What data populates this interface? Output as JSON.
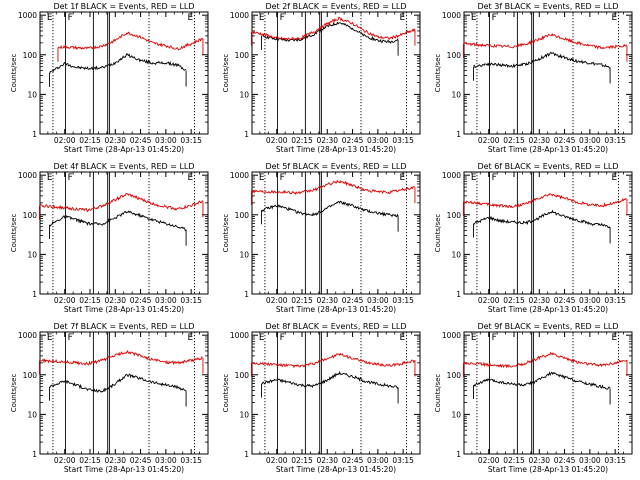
{
  "figure": {
    "background": "#ffffff",
    "colors": {
      "events": "#000000",
      "lld": "#e00000",
      "axes": "#000000"
    }
  },
  "chart_data": [
    {
      "type": "line",
      "title": "Det 1f BLACK = Events, RED = LLD",
      "xlabel": "Start Time (28-Apr-13 01:45:20)",
      "ylabel": "Counts/sec",
      "x_ticks": [
        "02:00",
        "02:15",
        "02:30",
        "02:45",
        "03:00",
        "03:15"
      ],
      "y_ticks": [
        "1",
        "10",
        "100",
        "1000"
      ],
      "ylim": [
        1,
        1000
      ],
      "ylog": true,
      "markers": [
        "E",
        "F",
        "E"
      ],
      "series": [
        {
          "name": "Events",
          "color": "#000000",
          "x": [
            "01:51",
            "02:00",
            "02:07",
            "02:14",
            "02:22",
            "02:29",
            "02:37",
            "02:45",
            "02:52",
            "03:00",
            "03:07",
            "03:12"
          ],
          "y": [
            35,
            60,
            48,
            45,
            47,
            60,
            100,
            72,
            62,
            62,
            55,
            40
          ]
        },
        {
          "name": "LLD",
          "color": "#e00000",
          "x": [
            "01:56",
            "02:00",
            "02:07",
            "02:14",
            "02:22",
            "02:29",
            "02:37",
            "02:45",
            "02:52",
            "03:00",
            "03:07",
            "03:15",
            "03:22"
          ],
          "y": [
            150,
            160,
            150,
            145,
            165,
            220,
            360,
            280,
            200,
            170,
            140,
            190,
            260
          ]
        }
      ]
    },
    {
      "type": "line",
      "title": "Det 2f BLACK = Events, RED = LLD",
      "xlabel": "Start Time (28-Apr-13 01:45:20)",
      "ylabel": "Counts/sec",
      "x_ticks": [
        "02:00",
        "02:15",
        "02:30",
        "02:45",
        "03:00",
        "03:15"
      ],
      "y_ticks": [
        "1",
        "10",
        "100",
        "1000"
      ],
      "ylim": [
        1,
        1000
      ],
      "ylog": true,
      "markers": [
        "E",
        "F",
        "E"
      ],
      "series": [
        {
          "name": "Events",
          "color": "#000000",
          "x": [
            "01:51",
            "02:00",
            "02:07",
            "02:14",
            "02:22",
            "02:29",
            "02:37",
            "02:45",
            "02:52",
            "03:00",
            "03:07",
            "03:12"
          ],
          "y": [
            300,
            250,
            230,
            240,
            330,
            500,
            650,
            470,
            300,
            230,
            210,
            240
          ]
        },
        {
          "name": "LLD",
          "color": "#e00000",
          "x": [
            "01:45",
            "01:53",
            "02:00",
            "02:07",
            "02:14",
            "02:22",
            "02:29",
            "02:37",
            "02:45",
            "02:52",
            "03:00",
            "03:07",
            "03:15",
            "03:22"
          ],
          "y": [
            380,
            320,
            260,
            250,
            260,
            380,
            580,
            830,
            620,
            400,
            280,
            260,
            330,
            430
          ]
        }
      ]
    },
    {
      "type": "line",
      "title": "Det 3f BLACK = Events, RED = LLD",
      "xlabel": "Start Time (28-Apr-13 01:45:20)",
      "ylabel": "Counts/sec",
      "x_ticks": [
        "02:00",
        "02:15",
        "02:30",
        "02:45",
        "03:00",
        "03:15"
      ],
      "y_ticks": [
        "1",
        "10",
        "100",
        "1000"
      ],
      "ylim": [
        1,
        1000
      ],
      "ylog": true,
      "markers": [
        "E",
        "F",
        "E"
      ],
      "series": [
        {
          "name": "Events",
          "color": "#000000",
          "x": [
            "01:51",
            "02:00",
            "02:07",
            "02:14",
            "02:22",
            "02:29",
            "02:37",
            "02:45",
            "02:52",
            "03:00",
            "03:07",
            "03:12"
          ],
          "y": [
            50,
            60,
            55,
            52,
            58,
            75,
            110,
            85,
            70,
            62,
            55,
            48
          ]
        },
        {
          "name": "LLD",
          "color": "#e00000",
          "x": [
            "01:45",
            "01:53",
            "02:00",
            "02:07",
            "02:14",
            "02:22",
            "02:29",
            "02:37",
            "02:45",
            "02:52",
            "03:00",
            "03:07",
            "03:15",
            "03:22"
          ],
          "y": [
            190,
            180,
            170,
            165,
            160,
            185,
            240,
            320,
            250,
            200,
            170,
            150,
            160,
            170
          ]
        }
      ]
    },
    {
      "type": "line",
      "title": "Det 4f BLACK = Events, RED = LLD",
      "xlabel": "Start Time (28-Apr-13 01:45:20)",
      "ylabel": "Counts/sec",
      "x_ticks": [
        "02:00",
        "02:15",
        "02:30",
        "02:45",
        "03:00",
        "03:15"
      ],
      "y_ticks": [
        "1",
        "10",
        "100",
        "1000"
      ],
      "ylim": [
        1,
        1000
      ],
      "ylog": true,
      "markers": [
        "E",
        "F",
        "E"
      ],
      "series": [
        {
          "name": "Events",
          "color": "#000000",
          "x": [
            "01:51",
            "02:00",
            "02:07",
            "02:14",
            "02:22",
            "02:29",
            "02:37",
            "02:45",
            "02:52",
            "03:00",
            "03:07",
            "03:12"
          ],
          "y": [
            55,
            90,
            75,
            60,
            58,
            80,
            120,
            95,
            75,
            60,
            50,
            42
          ]
        },
        {
          "name": "LLD",
          "color": "#e00000",
          "x": [
            "01:45",
            "01:53",
            "02:00",
            "02:07",
            "02:14",
            "02:22",
            "02:29",
            "02:37",
            "02:45",
            "02:52",
            "03:00",
            "03:07",
            "03:15",
            "03:22"
          ],
          "y": [
            170,
            160,
            150,
            140,
            130,
            165,
            230,
            330,
            250,
            190,
            160,
            140,
            170,
            220
          ]
        }
      ]
    },
    {
      "type": "line",
      "title": "Det 5f BLACK = Events, RED = LLD",
      "xlabel": "Start Time (28-Apr-13 01:45:20)",
      "ylabel": "Counts/sec",
      "x_ticks": [
        "02:00",
        "02:15",
        "02:30",
        "02:45",
        "03:00",
        "03:15"
      ],
      "y_ticks": [
        "1",
        "10",
        "100",
        "1000"
      ],
      "ylim": [
        1,
        1000
      ],
      "ylog": true,
      "markers": [
        "E",
        "F",
        "E"
      ],
      "series": [
        {
          "name": "Events",
          "color": "#000000",
          "x": [
            "01:51",
            "02:00",
            "02:07",
            "02:14",
            "02:22",
            "02:29",
            "02:37",
            "02:45",
            "02:52",
            "03:00",
            "03:07",
            "03:12"
          ],
          "y": [
            130,
            170,
            140,
            110,
            100,
            140,
            210,
            170,
            130,
            110,
            100,
            95
          ]
        },
        {
          "name": "LLD",
          "color": "#e00000",
          "x": [
            "01:45",
            "01:53",
            "02:00",
            "02:07",
            "02:14",
            "02:22",
            "02:29",
            "02:37",
            "02:45",
            "02:52",
            "03:00",
            "03:07",
            "03:15",
            "03:22"
          ],
          "y": [
            400,
            390,
            380,
            370,
            360,
            420,
            560,
            700,
            560,
            420,
            380,
            370,
            430,
            500
          ]
        }
      ]
    },
    {
      "type": "line",
      "title": "Det 6f BLACK = Events, RED = LLD",
      "xlabel": "Start Time (28-Apr-13 01:45:20)",
      "ylabel": "Counts/sec",
      "x_ticks": [
        "02:00",
        "02:15",
        "02:30",
        "02:45",
        "03:00",
        "03:15"
      ],
      "y_ticks": [
        "1",
        "10",
        "100",
        "1000"
      ],
      "ylim": [
        1,
        1000
      ],
      "ylog": true,
      "markers": [
        "E",
        "F",
        "E"
      ],
      "series": [
        {
          "name": "Events",
          "color": "#000000",
          "x": [
            "01:51",
            "02:00",
            "02:07",
            "02:14",
            "02:22",
            "02:29",
            "02:37",
            "02:45",
            "02:52",
            "03:00",
            "03:07",
            "03:12"
          ],
          "y": [
            60,
            85,
            70,
            65,
            62,
            80,
            120,
            90,
            75,
            60,
            55,
            48
          ]
        },
        {
          "name": "LLD",
          "color": "#e00000",
          "x": [
            "01:45",
            "01:53",
            "02:00",
            "02:07",
            "02:14",
            "02:22",
            "02:29",
            "02:37",
            "02:45",
            "02:52",
            "03:00",
            "03:07",
            "03:15",
            "03:22"
          ],
          "y": [
            210,
            200,
            180,
            170,
            160,
            190,
            250,
            330,
            260,
            210,
            180,
            170,
            200,
            250
          ]
        }
      ]
    },
    {
      "type": "line",
      "title": "Det 7f BLACK = Events, RED = LLD",
      "xlabel": "Start Time (28-Apr-13 01:45:20)",
      "ylabel": "Counts/sec",
      "x_ticks": [
        "02:00",
        "02:15",
        "02:30",
        "02:45",
        "03:00",
        "03:15"
      ],
      "y_ticks": [
        "1",
        "10",
        "100",
        "1000"
      ],
      "ylim": [
        1,
        1000
      ],
      "ylog": true,
      "markers": [
        "E",
        "F",
        "E"
      ],
      "series": [
        {
          "name": "Events",
          "color": "#000000",
          "x": [
            "01:51",
            "02:00",
            "02:07",
            "02:14",
            "02:22",
            "02:29",
            "02:37",
            "02:45",
            "02:52",
            "03:00",
            "03:07",
            "03:12"
          ],
          "y": [
            50,
            70,
            55,
            42,
            38,
            55,
            100,
            80,
            65,
            55,
            48,
            40
          ]
        },
        {
          "name": "LLD",
          "color": "#e00000",
          "x": [
            "01:45",
            "01:53",
            "02:00",
            "02:07",
            "02:14",
            "02:22",
            "02:29",
            "02:37",
            "02:45",
            "02:52",
            "03:00",
            "03:07",
            "03:15",
            "03:22"
          ],
          "y": [
            230,
            220,
            210,
            200,
            190,
            230,
            300,
            380,
            300,
            240,
            210,
            200,
            230,
            270
          ]
        }
      ]
    },
    {
      "type": "line",
      "title": "Det 8f BLACK = Events, RED = LLD",
      "xlabel": "Start Time (28-Apr-13 01:45:20)",
      "ylabel": "Counts/sec",
      "x_ticks": [
        "02:00",
        "02:15",
        "02:30",
        "02:45",
        "03:00",
        "03:15"
      ],
      "y_ticks": [
        "1",
        "10",
        "100",
        "1000"
      ],
      "ylim": [
        1,
        1000
      ],
      "ylog": true,
      "markers": [
        "E",
        "F",
        "E"
      ],
      "series": [
        {
          "name": "Events",
          "color": "#000000",
          "x": [
            "01:51",
            "02:00",
            "02:07",
            "02:14",
            "02:22",
            "02:29",
            "02:37",
            "02:45",
            "02:52",
            "03:00",
            "03:07",
            "03:12"
          ],
          "y": [
            60,
            75,
            65,
            55,
            52,
            70,
            110,
            90,
            70,
            58,
            52,
            48
          ]
        },
        {
          "name": "LLD",
          "color": "#e00000",
          "x": [
            "01:45",
            "01:53",
            "02:00",
            "02:07",
            "02:14",
            "02:22",
            "02:29",
            "02:37",
            "02:45",
            "02:52",
            "03:00",
            "03:07",
            "03:15",
            "03:22"
          ],
          "y": [
            200,
            190,
            180,
            170,
            165,
            190,
            250,
            330,
            260,
            210,
            185,
            170,
            195,
            230
          ]
        }
      ]
    },
    {
      "type": "line",
      "title": "Det 9f BLACK = Events, RED = LLD",
      "xlabel": "Start Time (28-Apr-13 01:45:20)",
      "ylabel": "Counts/sec",
      "x_ticks": [
        "02:00",
        "02:15",
        "02:30",
        "02:45",
        "03:00",
        "03:15"
      ],
      "y_ticks": [
        "1",
        "10",
        "100",
        "1000"
      ],
      "ylim": [
        1,
        1000
      ],
      "ylog": true,
      "markers": [
        "E",
        "F",
        "E"
      ],
      "series": [
        {
          "name": "Events",
          "color": "#000000",
          "x": [
            "01:51",
            "02:00",
            "02:07",
            "02:14",
            "02:22",
            "02:29",
            "02:37",
            "02:45",
            "02:52",
            "03:00",
            "03:07",
            "03:12"
          ],
          "y": [
            55,
            75,
            65,
            58,
            55,
            72,
            110,
            88,
            70,
            58,
            50,
            45
          ]
        },
        {
          "name": "LLD",
          "color": "#e00000",
          "x": [
            "01:45",
            "01:53",
            "02:00",
            "02:07",
            "02:14",
            "02:22",
            "02:29",
            "02:37",
            "02:45",
            "02:52",
            "03:00",
            "03:07",
            "03:15",
            "03:22"
          ],
          "y": [
            200,
            190,
            180,
            170,
            165,
            195,
            260,
            340,
            270,
            210,
            185,
            175,
            200,
            235
          ]
        }
      ]
    }
  ]
}
